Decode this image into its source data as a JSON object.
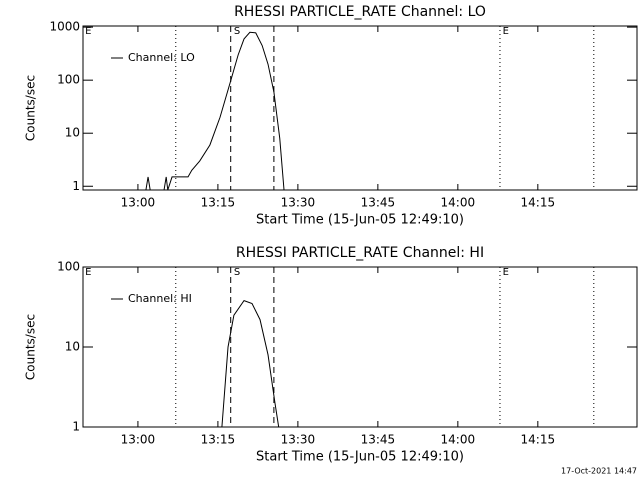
{
  "chart_data": [
    {
      "type": "line",
      "title": "RHESSI PARTICLE_RATE Channel: LO",
      "xlabel": "Start Time (15-Jun-05 12:49:10)",
      "ylabel": "Counts/sec",
      "log_y": true,
      "xlim": [
        769.7,
        873.6
      ],
      "ylim": [
        0.85,
        1050
      ],
      "xticks": [
        {
          "value": 780,
          "label": "13:00"
        },
        {
          "value": 795,
          "label": "13:15"
        },
        {
          "value": 810,
          "label": "13:30"
        },
        {
          "value": 825,
          "label": "13:45"
        },
        {
          "value": 840,
          "label": "14:00"
        },
        {
          "value": 855,
          "label": "14:15"
        }
      ],
      "yticks": [
        1,
        10,
        100,
        1000
      ],
      "legend": "upper left",
      "vlines": [
        {
          "x": 787.1,
          "style": "dotted"
        },
        {
          "x": 797.4,
          "style": "dashed"
        },
        {
          "x": 805.5,
          "style": "dashed"
        },
        {
          "x": 847.9,
          "style": "dotted"
        },
        {
          "x": 865.5,
          "style": "dotted"
        }
      ],
      "vline_labels": [
        {
          "x": 770.1,
          "text": "E"
        },
        {
          "x": 798.0,
          "text": "S"
        },
        {
          "x": 848.4,
          "text": "E"
        }
      ],
      "series": [
        {
          "name": "Channel: LO",
          "color": "#000000",
          "x": [
            780.4,
            781.5,
            781.9,
            782.3,
            784.9,
            785.3,
            785.6,
            786.4,
            789.4,
            790.1,
            791.6,
            793.5,
            795.4,
            797.3,
            798.8,
            799.9,
            801.0,
            802.1,
            803.3,
            804.4,
            805.5,
            806.6,
            807.4
          ],
          "values": [
            0.85,
            0.85,
            1.5,
            0.85,
            0.85,
            1.5,
            0.85,
            1.5,
            1.5,
            2,
            3,
            6,
            20,
            90,
            300,
            600,
            800,
            780,
            450,
            200,
            60,
            8,
            0.85
          ]
        }
      ]
    },
    {
      "type": "line",
      "title": "RHESSI PARTICLE_RATE Channel: HI",
      "xlabel": "Start Time (15-Jun-05 12:49:10)",
      "ylabel": "Counts/sec",
      "log_y": true,
      "xlim": [
        769.7,
        873.6
      ],
      "ylim": [
        1,
        100
      ],
      "xticks": [
        {
          "value": 780,
          "label": "13:00"
        },
        {
          "value": 795,
          "label": "13:15"
        },
        {
          "value": 810,
          "label": "13:30"
        },
        {
          "value": 825,
          "label": "13:45"
        },
        {
          "value": 840,
          "label": "14:00"
        },
        {
          "value": 855,
          "label": "14:15"
        }
      ],
      "yticks": [
        1,
        10,
        100
      ],
      "legend": "upper left",
      "vlines": [
        {
          "x": 787.1,
          "style": "dotted"
        },
        {
          "x": 797.4,
          "style": "dashed"
        },
        {
          "x": 805.5,
          "style": "dashed"
        },
        {
          "x": 847.9,
          "style": "dotted"
        },
        {
          "x": 865.5,
          "style": "dotted"
        }
      ],
      "vline_labels": [
        {
          "x": 770.1,
          "text": "E"
        },
        {
          "x": 798.0,
          "text": "S"
        },
        {
          "x": 848.4,
          "text": "E"
        }
      ],
      "series": [
        {
          "name": "Channel: HI",
          "color": "#000000",
          "x": [
            795.75,
            796.9,
            798.0,
            799.9,
            801.4,
            802.9,
            804.4,
            805.7,
            806.4
          ],
          "values": [
            1,
            10,
            25,
            38,
            35,
            22,
            8,
            2,
            1
          ]
        }
      ]
    }
  ],
  "footer": "17-Oct-2021 14:47"
}
